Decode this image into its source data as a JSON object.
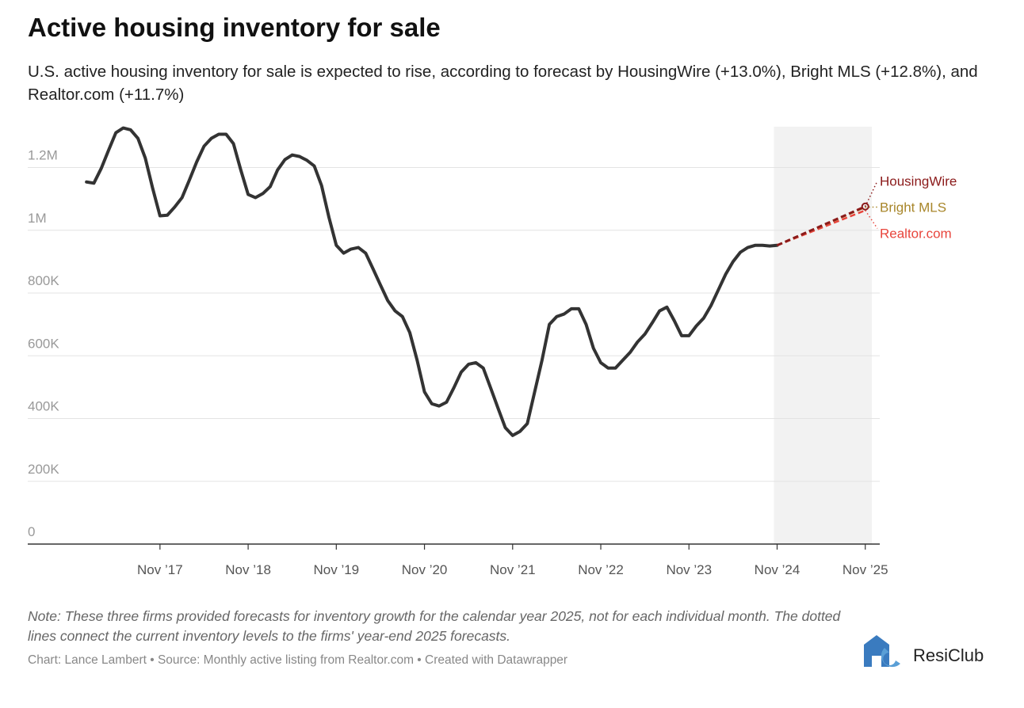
{
  "chart_data": {
    "type": "line",
    "title": "Active housing inventory for sale",
    "subtitle": "U.S. active housing inventory for sale is expected to rise, according to forecast by HousingWire (+13.0%), Bright MLS (+12.8%), and Realtor.com (+11.7%)",
    "x": [
      "2017-01",
      "2017-02",
      "2017-03",
      "2017-04",
      "2017-05",
      "2017-06",
      "2017-07",
      "2017-08",
      "2017-09",
      "2017-10",
      "2017-11",
      "2017-12",
      "2018-01",
      "2018-02",
      "2018-03",
      "2018-04",
      "2018-05",
      "2018-06",
      "2018-07",
      "2018-08",
      "2018-09",
      "2018-10",
      "2018-11",
      "2018-12",
      "2019-01",
      "2019-02",
      "2019-03",
      "2019-04",
      "2019-05",
      "2019-06",
      "2019-07",
      "2019-08",
      "2019-09",
      "2019-10",
      "2019-11",
      "2019-12",
      "2020-01",
      "2020-02",
      "2020-03",
      "2020-04",
      "2020-05",
      "2020-06",
      "2020-07",
      "2020-08",
      "2020-09",
      "2020-10",
      "2020-11",
      "2020-12",
      "2021-01",
      "2021-02",
      "2021-03",
      "2021-04",
      "2021-05",
      "2021-06",
      "2021-07",
      "2021-08",
      "2021-09",
      "2021-10",
      "2021-11",
      "2021-12",
      "2022-01",
      "2022-02",
      "2022-03",
      "2022-04",
      "2022-05",
      "2022-06",
      "2022-07",
      "2022-08",
      "2022-09",
      "2022-10",
      "2022-11",
      "2022-12",
      "2023-01",
      "2023-02",
      "2023-03",
      "2023-04",
      "2023-05",
      "2023-06",
      "2023-07",
      "2023-08",
      "2023-09",
      "2023-10",
      "2023-11",
      "2023-12",
      "2024-01",
      "2024-02",
      "2024-03",
      "2024-04",
      "2024-05",
      "2024-06",
      "2024-07",
      "2024-08",
      "2024-09",
      "2024-10",
      "2024-11"
    ],
    "values": [
      1154000,
      1150000,
      1197000,
      1255000,
      1311000,
      1326000,
      1320000,
      1293000,
      1230000,
      1134000,
      1046000,
      1048000,
      1074000,
      1104000,
      1160000,
      1218000,
      1268000,
      1293000,
      1306000,
      1306000,
      1276000,
      1192000,
      1114000,
      1104000,
      1117000,
      1139000,
      1192000,
      1225000,
      1240000,
      1235000,
      1223000,
      1205000,
      1142000,
      1041000,
      952000,
      927000,
      940000,
      945000,
      927000,
      877000,
      826000,
      776000,
      743000,
      725000,
      674000,
      586000,
      485000,
      447000,
      440000,
      452000,
      498000,
      548000,
      573000,
      578000,
      561000,
      498000,
      434000,
      371000,
      346000,
      359000,
      384000,
      485000,
      586000,
      700000,
      725000,
      733000,
      750000,
      750000,
      700000,
      624000,
      578000,
      561000,
      561000,
      586000,
      611000,
      644000,
      669000,
      705000,
      743000,
      755000,
      712000,
      664000,
      664000,
      695000,
      720000,
      760000,
      810000,
      860000,
      900000,
      930000,
      945000,
      952000,
      952000,
      950000,
      952000
    ],
    "color": "#333333",
    "forecasts": [
      {
        "name": "HousingWire",
        "color": "#8b1a1a",
        "x": [
          "2024-11",
          "2025-11"
        ],
        "values": [
          952000,
          1075760
        ]
      },
      {
        "name": "Bright MLS",
        "color": "#a8862a",
        "x": [
          "2024-11",
          "2025-11"
        ],
        "values": [
          952000,
          1073856
        ]
      },
      {
        "name": "Realtor.com",
        "color": "#e8453c",
        "x": [
          "2024-11",
          "2025-11"
        ],
        "values": [
          952000,
          1063384
        ]
      }
    ],
    "forecast_region": [
      "2024-11",
      "2025-12"
    ],
    "xlim": [
      "2016-05",
      "2025-12"
    ],
    "xticks": [
      {
        "value": "2017-11",
        "label": "Nov ’17"
      },
      {
        "value": "2018-11",
        "label": "Nov ’18"
      },
      {
        "value": "2019-11",
        "label": "Nov ’19"
      },
      {
        "value": "2020-11",
        "label": "Nov ’20"
      },
      {
        "value": "2021-11",
        "label": "Nov ’21"
      },
      {
        "value": "2022-11",
        "label": "Nov ’22"
      },
      {
        "value": "2023-11",
        "label": "Nov ’23"
      },
      {
        "value": "2024-11",
        "label": "Nov ’24"
      },
      {
        "value": "2025-11",
        "label": "Nov ’25"
      }
    ],
    "ylim": [
      0,
      1330000
    ],
    "yticks": [
      0,
      {
        "value": 200000,
        "label": "200K"
      },
      {
        "value": 400000,
        "label": "400K"
      },
      {
        "value": 600000,
        "label": "600K"
      },
      {
        "value": 800000,
        "label": "800K"
      },
      {
        "value": 1000000,
        "label": "1M"
      },
      {
        "value": 1200000,
        "label": "1.2M"
      }
    ],
    "grid": true,
    "note": "Note: These three firms provided forecasts for inventory growth for the calendar year 2025, not for each individual month. The dotted lines connect the current inventory levels to the firms' year-end 2025 forecasts.",
    "footer": "Chart: Lance Lambert • Source: Monthly active listing from Realtor.com • Created with Datawrapper",
    "logo_text": "ResiClub"
  }
}
